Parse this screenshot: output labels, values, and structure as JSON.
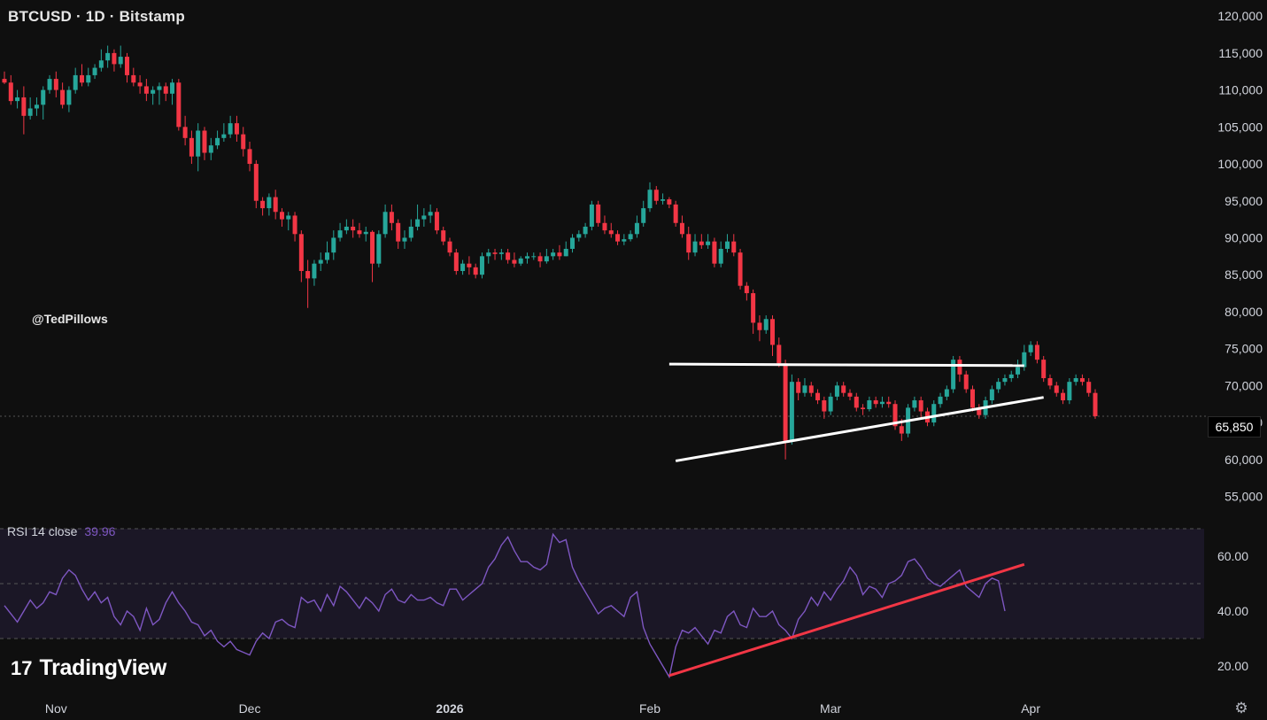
{
  "header": {
    "title": "BTCUSD · 1D · Bitstamp"
  },
  "watermark": "@TedPillows",
  "current_price_label": "65,850",
  "rsi": {
    "label": "RSI 14 close",
    "value": "39.96"
  },
  "brand": {
    "mark": "17",
    "name": "TradingView"
  },
  "icons": {
    "settings": "gear-icon",
    "logo": "tradingview-logo-icon"
  },
  "colors": {
    "up": "#26a69a",
    "down": "#f23645",
    "rsi": "#7e57c2",
    "trendline_price": "#ffffff",
    "trendline_rsi": "#f23645",
    "bg": "#0f0f0f"
  },
  "chart_data": [
    {
      "type": "candlestick",
      "title": "BTCUSD · 1D · Bitstamp",
      "x_ticks": [
        "Nov",
        "Dec",
        "2026",
        "Feb",
        "Mar",
        "Apr"
      ],
      "y_ticks": [
        "120,000",
        "115,000",
        "110,000",
        "105,000",
        "100,000",
        "95,000",
        "90,000",
        "85,000",
        "80,000",
        "75,000",
        "70,000",
        "65,000",
        "60,000",
        "55,000"
      ],
      "ylim": [
        53500,
        120500
      ],
      "start_date": "2025-10-24",
      "candles": [
        [
          111500,
          111000,
          112500,
          110800
        ],
        [
          111000,
          108500,
          112000,
          108000
        ],
        [
          108500,
          109000,
          110000,
          107500
        ],
        [
          109000,
          106500,
          110500,
          104000
        ],
        [
          106500,
          107500,
          109000,
          106000
        ],
        [
          107500,
          108000,
          109000,
          106500
        ],
        [
          108000,
          110000,
          110500,
          106000
        ],
        [
          110000,
          111500,
          112000,
          109500
        ],
        [
          111500,
          110000,
          112500,
          109000
        ],
        [
          110000,
          108000,
          111000,
          107500
        ],
        [
          108000,
          110000,
          110500,
          107000
        ],
        [
          110000,
          112000,
          113000,
          109500
        ],
        [
          112000,
          111000,
          113500,
          110500
        ],
        [
          111000,
          112000,
          113000,
          110500
        ],
        [
          112000,
          113000,
          113500,
          111500
        ],
        [
          113000,
          114000,
          115500,
          112500
        ],
        [
          114000,
          115000,
          116000,
          113000
        ],
        [
          115000,
          113500,
          115500,
          112500
        ],
        [
          113500,
          114500,
          116000,
          113000
        ],
        [
          114500,
          112000,
          115000,
          111000
        ],
        [
          112000,
          111000,
          113000,
          110500
        ],
        [
          111000,
          110500,
          112000,
          109500
        ],
        [
          110500,
          109500,
          111500,
          108500
        ],
        [
          109500,
          110000,
          110500,
          108000
        ],
        [
          110000,
          110500,
          111000,
          108000
        ],
        [
          110500,
          109500,
          111000,
          108500
        ],
        [
          109500,
          111000,
          111500,
          108000
        ],
        [
          111000,
          105000,
          111500,
          104500
        ],
        [
          105000,
          103500,
          106500,
          102500
        ],
        [
          103500,
          101000,
          104500,
          100000
        ],
        [
          101000,
          104500,
          105500,
          99000
        ],
        [
          104500,
          101500,
          105000,
          100500
        ],
        [
          101500,
          102500,
          103500,
          100500
        ],
        [
          102500,
          103500,
          104500,
          102000
        ],
        [
          103500,
          104000,
          105500,
          103000
        ],
        [
          104000,
          105500,
          106500,
          103500
        ],
        [
          105500,
          104000,
          106500,
          103000
        ],
        [
          104000,
          102000,
          105000,
          101000
        ],
        [
          102000,
          100000,
          103000,
          99000
        ],
        [
          100000,
          95000,
          100500,
          94000
        ],
        [
          95000,
          94000,
          95500,
          93000
        ],
        [
          94000,
          95500,
          96000,
          93000
        ],
        [
          95500,
          93500,
          96500,
          92500
        ],
        [
          93500,
          92500,
          94000,
          91500
        ],
        [
          92500,
          93000,
          93500,
          91000
        ],
        [
          93000,
          90500,
          93500,
          89500
        ],
        [
          90500,
          85500,
          91000,
          84000
        ],
        [
          85500,
          84500,
          87000,
          80500
        ],
        [
          84500,
          86500,
          87000,
          83500
        ],
        [
          86500,
          87000,
          88000,
          85500
        ],
        [
          87000,
          88000,
          89500,
          86500
        ],
        [
          88000,
          90000,
          91000,
          87000
        ],
        [
          90000,
          91000,
          92000,
          89500
        ],
        [
          91000,
          91500,
          92500,
          90500
        ],
        [
          91500,
          91000,
          92500,
          90000
        ],
        [
          91000,
          90500,
          92000,
          90000
        ],
        [
          90500,
          90800,
          91500,
          89500
        ],
        [
          90800,
          86500,
          91000,
          84000
        ],
        [
          86500,
          90500,
          91000,
          86000
        ],
        [
          90500,
          93500,
          94500,
          90000
        ],
        [
          93500,
          92000,
          94500,
          91000
        ],
        [
          92000,
          89500,
          92500,
          88500
        ],
        [
          89500,
          90000,
          91000,
          88500
        ],
        [
          90000,
          91500,
          92500,
          89500
        ],
        [
          91500,
          92500,
          94500,
          91000
        ],
        [
          92500,
          93000,
          94000,
          91500
        ],
        [
          93000,
          93500,
          94500,
          92000
        ],
        [
          93500,
          91000,
          94000,
          90500
        ],
        [
          91000,
          89500,
          91500,
          89000
        ],
        [
          89500,
          88000,
          90000,
          87500
        ],
        [
          88000,
          85500,
          88500,
          85000
        ],
        [
          85500,
          86500,
          87000,
          85000
        ],
        [
          86500,
          86000,
          87500,
          85000
        ],
        [
          86000,
          85000,
          86500,
          84500
        ],
        [
          85000,
          87500,
          88000,
          84500
        ],
        [
          87500,
          88000,
          88500,
          86500
        ],
        [
          88000,
          87800,
          88500,
          87000
        ],
        [
          87800,
          88000,
          88500,
          87000
        ],
        [
          88000,
          87000,
          88500,
          86500
        ],
        [
          87000,
          86500,
          88000,
          86000
        ],
        [
          86500,
          87200,
          87500,
          86200
        ],
        [
          87200,
          87500,
          88000,
          86500
        ],
        [
          87500,
          87500,
          88000,
          87000
        ],
        [
          87500,
          86800,
          88000,
          86000
        ],
        [
          86800,
          87500,
          88500,
          86500
        ],
        [
          87500,
          88000,
          88500,
          87000
        ],
        [
          88000,
          87500,
          89000,
          87000
        ],
        [
          87500,
          88500,
          89500,
          87500
        ],
        [
          88500,
          90000,
          90500,
          88000
        ],
        [
          90000,
          90500,
          91000,
          89500
        ],
        [
          90500,
          91500,
          92000,
          90000
        ],
        [
          91500,
          94500,
          95000,
          91000
        ],
        [
          94500,
          92000,
          95000,
          91500
        ],
        [
          92000,
          91000,
          93000,
          90500
        ],
        [
          91000,
          90500,
          92000,
          90000
        ],
        [
          90500,
          89500,
          91000,
          89000
        ],
        [
          89500,
          89800,
          90500,
          89000
        ],
        [
          89800,
          90500,
          91000,
          89500
        ],
        [
          90500,
          92000,
          93000,
          90000
        ],
        [
          92000,
          94000,
          95000,
          91500
        ],
        [
          94000,
          96500,
          97500,
          93500
        ],
        [
          96500,
          95000,
          97000,
          94500
        ],
        [
          95000,
          95200,
          96000,
          94500
        ],
        [
          95200,
          94500,
          95500,
          94000
        ],
        [
          94500,
          92000,
          95000,
          91500
        ],
        [
          92000,
          90500,
          93000,
          90000
        ],
        [
          90500,
          88000,
          91500,
          87000
        ],
        [
          88000,
          89500,
          90500,
          87500
        ],
        [
          89500,
          89000,
          90500,
          88500
        ],
        [
          89000,
          89500,
          90500,
          88500
        ],
        [
          89500,
          86500,
          90000,
          86000
        ],
        [
          86500,
          88500,
          89500,
          86000
        ],
        [
          88500,
          89500,
          90500,
          88000
        ],
        [
          89500,
          88000,
          90500,
          87500
        ],
        [
          88000,
          83500,
          88500,
          83000
        ],
        [
          83500,
          82500,
          84000,
          81500
        ],
        [
          82500,
          78500,
          83000,
          77000
        ],
        [
          78500,
          77500,
          79500,
          76000
        ],
        [
          77500,
          79000,
          79500,
          77000
        ],
        [
          79000,
          75500,
          79500,
          74000
        ],
        [
          75500,
          73000,
          76500,
          72500
        ],
        [
          73000,
          62500,
          73500,
          60000
        ],
        [
          62500,
          70500,
          71500,
          62000
        ],
        [
          70500,
          69000,
          71000,
          68000
        ],
        [
          69000,
          70000,
          71000,
          68500
        ],
        [
          70000,
          69000,
          70500,
          68500
        ],
        [
          69000,
          68000,
          69500,
          67500
        ],
        [
          68000,
          66500,
          68500,
          65500
        ],
        [
          66500,
          68500,
          69000,
          66000
        ],
        [
          68500,
          70000,
          70500,
          68000
        ],
        [
          70000,
          69000,
          70500,
          68500
        ],
        [
          69000,
          68500,
          69500,
          68000
        ],
        [
          68500,
          67000,
          69000,
          66500
        ],
        [
          67000,
          66800,
          67500,
          66000
        ],
        [
          66800,
          68000,
          68500,
          66500
        ],
        [
          68000,
          67500,
          68500,
          67000
        ],
        [
          67500,
          67800,
          68500,
          67000
        ],
        [
          67800,
          67500,
          68500,
          67000
        ],
        [
          67500,
          64500,
          68000,
          64000
        ],
        [
          64500,
          63500,
          65500,
          62500
        ],
        [
          63500,
          67000,
          67500,
          63000
        ],
        [
          67000,
          68000,
          68500,
          66500
        ],
        [
          68000,
          66500,
          68500,
          65500
        ],
        [
          66500,
          65000,
          67000,
          64500
        ],
        [
          65000,
          67500,
          68000,
          64500
        ],
        [
          67500,
          68500,
          69000,
          67000
        ],
        [
          68500,
          69500,
          70000,
          68000
        ],
        [
          69500,
          73500,
          74000,
          69000
        ],
        [
          73500,
          71500,
          74000,
          70500
        ],
        [
          71500,
          69500,
          72000,
          69000
        ],
        [
          69500,
          67000,
          70000,
          66500
        ],
        [
          67000,
          66000,
          67500,
          65500
        ],
        [
          66000,
          68000,
          68500,
          65500
        ],
        [
          68000,
          69500,
          70000,
          67500
        ],
        [
          69500,
          70500,
          71000,
          69000
        ],
        [
          70500,
          71000,
          71500,
          70000
        ],
        [
          71000,
          71500,
          72000,
          70500
        ],
        [
          71500,
          72500,
          73500,
          71000
        ],
        [
          72500,
          74500,
          75500,
          72000
        ],
        [
          74500,
          75500,
          76000,
          74000
        ],
        [
          75500,
          73500,
          76000,
          73000
        ],
        [
          73500,
          71000,
          74000,
          70500
        ],
        [
          71000,
          70000,
          71500,
          69500
        ],
        [
          70000,
          69000,
          70500,
          68500
        ],
        [
          69000,
          68000,
          69500,
          67500
        ],
        [
          68000,
          70500,
          71000,
          67500
        ],
        [
          70500,
          71000,
          71500,
          70000
        ],
        [
          71000,
          70500,
          71500,
          70000
        ],
        [
          70500,
          69000,
          71000,
          68500
        ],
        [
          69000,
          65850,
          69500,
          65500
        ]
      ],
      "lines": [
        {
          "name": "resistance",
          "color": "#ffffff",
          "from": [
            "2026-02-04",
            72900
          ],
          "to": [
            "2026-03-31",
            72700
          ]
        },
        {
          "name": "support",
          "color": "#ffffff",
          "from": [
            "2026-02-05",
            59800
          ],
          "to": [
            "2026-04-03",
            68400
          ]
        }
      ],
      "current_price": 65850
    },
    {
      "type": "line",
      "title": "RSI 14 close",
      "y_ticks": [
        "60.00",
        "40.00",
        "20.00"
      ],
      "ylim": [
        15,
        72
      ],
      "bands": [
        30,
        70
      ],
      "midline": 50,
      "values": [
        42,
        39,
        36,
        40,
        44,
        41,
        43,
        47,
        46,
        52,
        55,
        53,
        48,
        44,
        47,
        43,
        45,
        38,
        35,
        40,
        38,
        33,
        41,
        35,
        37,
        43,
        47,
        43,
        40,
        36,
        35,
        31,
        33,
        29,
        27,
        29,
        26,
        25,
        24,
        29,
        32,
        30,
        36,
        37,
        35,
        34,
        45,
        43,
        44,
        40,
        46,
        42,
        49,
        47,
        44,
        41,
        45,
        43,
        40,
        46,
        48,
        44,
        43,
        46,
        44,
        44,
        45,
        43,
        42,
        48,
        48,
        44,
        46,
        48,
        50,
        56,
        59,
        64,
        67,
        62,
        58,
        58,
        56,
        55,
        57,
        68,
        65,
        66,
        56,
        51,
        47,
        43,
        39,
        41,
        42,
        40,
        38,
        45,
        47,
        34,
        28,
        24,
        20,
        16,
        27,
        33,
        32,
        34,
        31,
        28,
        33,
        32,
        38,
        40,
        35,
        34,
        41,
        38,
        38,
        40,
        35,
        33,
        30,
        37,
        40,
        45,
        42,
        47,
        44,
        48,
        51,
        56,
        53,
        46,
        49,
        48,
        45,
        50,
        51,
        53,
        58,
        59,
        56,
        52,
        50,
        49,
        51,
        53,
        55,
        49,
        47,
        45,
        50,
        52,
        51,
        40
      ],
      "lines": [
        {
          "name": "rsi-trendline",
          "color": "#f23645",
          "from": [
            "2026-02-04",
            16.5
          ],
          "to": [
            "2026-03-31",
            57
          ]
        }
      ]
    }
  ]
}
